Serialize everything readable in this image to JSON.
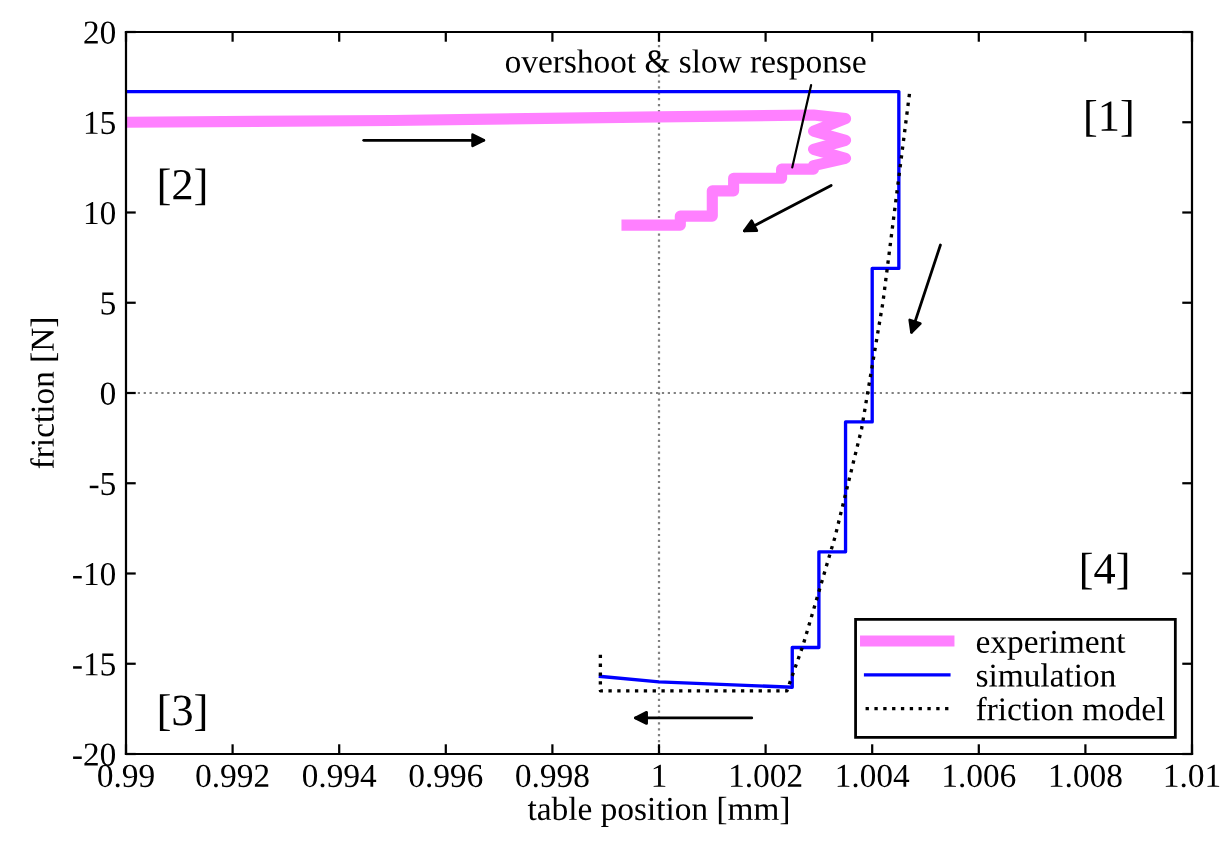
{
  "chart_data": {
    "type": "line",
    "xlabel": "table position [mm]",
    "ylabel": "friction [N]",
    "xlim": [
      0.99,
      1.01
    ],
    "ylim": [
      -20,
      20
    ],
    "xticks": [
      0.99,
      0.992,
      0.994,
      0.996,
      0.998,
      1,
      1.002,
      1.004,
      1.006,
      1.008,
      1.01
    ],
    "yticks": [
      -20,
      -15,
      -10,
      -5,
      0,
      5,
      10,
      15,
      20
    ],
    "grid": false,
    "legend": "bottom right",
    "marker": "none",
    "series": [
      {
        "name": "experiment",
        "color": "#ff80ff",
        "line_style": "solid",
        "x": [
          0.99,
          0.995,
          1.0,
          1.0029,
          1.0035,
          1.0029,
          1.0035,
          1.0029,
          1.0035,
          1.0029,
          1.0029,
          1.0023,
          1.0023,
          1.0014,
          1.0014,
          1.001,
          1.001,
          1.0004,
          1.0004,
          0.9994
        ],
        "values": [
          15.0,
          15.1,
          15.3,
          15.4,
          15.2,
          14.5,
          14.0,
          13.5,
          13.0,
          12.6,
          12.4,
          12.4,
          11.9,
          11.9,
          11.2,
          11.2,
          9.8,
          9.8,
          9.3,
          9.3
        ]
      },
      {
        "name": "simulation",
        "color": "#0000ff",
        "line_style": "solid",
        "x": [
          0.99,
          1.0045,
          1.0045,
          1.004,
          1.004,
          1.0035,
          1.0035,
          1.003,
          1.003,
          1.0025,
          1.0025,
          1.0,
          0.9989
        ],
        "values": [
          16.7,
          16.7,
          6.9,
          6.9,
          -1.6,
          -1.6,
          -8.8,
          -8.8,
          -14.1,
          -14.1,
          -16.3,
          -16.0,
          -15.7
        ]
      },
      {
        "name": "friction model",
        "color": "#000000",
        "line_style": "dotted",
        "x": [
          0.9989,
          0.9989,
          1.0024,
          1.0027,
          1.0033,
          1.0038,
          1.0042,
          1.0047
        ],
        "values": [
          -14.5,
          -16.5,
          -16.5,
          -14,
          -8,
          -2,
          5,
          16.6
        ]
      }
    ],
    "ref_lines": [
      {
        "axis": "x",
        "value": 1,
        "color": "#808080",
        "line_style": "dotted"
      },
      {
        "axis": "y",
        "value": 0,
        "color": "#808080",
        "line_style": "dotted"
      }
    ],
    "annotations": [
      {
        "text": "overshoot & slow response",
        "x": 1.0025,
        "y": 12.5
      },
      "[1]",
      "[2]",
      "[3]",
      "[4]"
    ]
  }
}
